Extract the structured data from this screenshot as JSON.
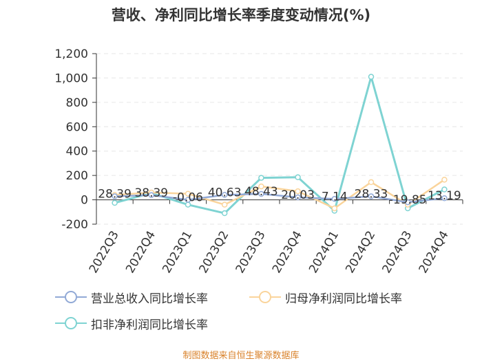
{
  "title": "营收、净利同比增长率季度变动情况(%)",
  "source": "制图数据来自恒生聚源数据库",
  "chart_data": {
    "type": "line",
    "title": "营收、净利同比增长率季度变动情况(%)",
    "categories": [
      "2022Q3",
      "2022Q4",
      "2023Q1",
      "2023Q2",
      "2023Q3",
      "2023Q4",
      "2024Q1",
      "2024Q2",
      "2024Q3",
      "2024Q4"
    ],
    "y_ticks": [
      "-200",
      "0",
      "200",
      "400",
      "600",
      "800",
      "1,000",
      "1,200"
    ],
    "ylim": [
      -200,
      1200
    ],
    "grid": false,
    "legend_position": "bottom",
    "series": [
      {
        "name": "营业总收入同比增长率",
        "color": "#91a9d6",
        "values": [
          28.39,
          38.39,
          -0.06,
          40.63,
          48.43,
          20.03,
          7.14,
          28.33,
          -19.85,
          13.19
        ],
        "labels": [
          "28.39",
          "38.39",
          "-0.06",
          "40.63",
          "48.43",
          "20.03",
          "7.14",
          "28.33",
          "-19.85",
          "13.19"
        ]
      },
      {
        "name": "归母净利润同比增长率",
        "color": "#fad49b",
        "values": [
          40,
          60,
          50,
          -40,
          110,
          70,
          -70,
          145,
          -40,
          165
        ]
      },
      {
        "name": "扣非净利润同比增长率",
        "color": "#7ed3d2",
        "values": [
          -25,
          55,
          -40,
          -110,
          180,
          185,
          -90,
          1010,
          -70,
          85
        ]
      }
    ]
  }
}
